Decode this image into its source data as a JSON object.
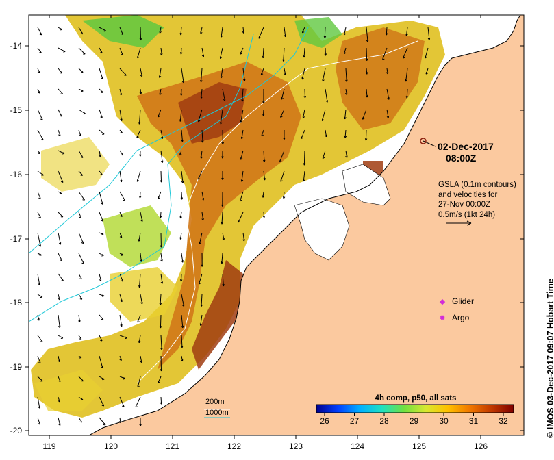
{
  "map": {
    "x_ticks": [
      "119",
      "120",
      "121",
      "122",
      "123",
      "124",
      "125",
      "126"
    ],
    "y_ticks": [
      "-14",
      "-15",
      "-16",
      "-17",
      "-18",
      "-19",
      "-20"
    ],
    "land_color": "#fbc99f",
    "ocean_color": "#ffffff"
  },
  "annotations": {
    "date_line1": "02-Dec-2017",
    "date_line2": "08:00Z",
    "gsla_lines": [
      "GSLA (0.1m contours)",
      "and velocities for",
      "27-Nov 00:00Z",
      "0.5m/s (1kt 24h)"
    ]
  },
  "legend": {
    "glider_label": "Glider",
    "argo_label": "Argo",
    "marker_color": "#d22bd8"
  },
  "contour_key": {
    "label_200": "200m",
    "label_1000": "1000m",
    "line_color": "#1ec8d8"
  },
  "colorbar": {
    "title": "4h comp, p50, all sats",
    "ticks": [
      "26",
      "27",
      "28",
      "29",
      "30",
      "31",
      "32"
    ],
    "colors": [
      "#00008f",
      "#0040ff",
      "#00b0ff",
      "#20e0c0",
      "#70e040",
      "#d8e830",
      "#ffc000",
      "#f07800",
      "#c03800",
      "#800000"
    ]
  },
  "credit": "IMOS 03-Dec-2017 09:07 Hobart Time"
}
